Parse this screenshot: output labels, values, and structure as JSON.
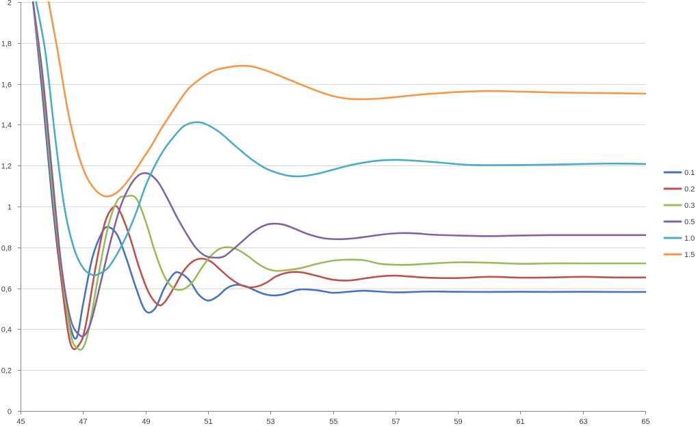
{
  "chart_data": {
    "type": "line",
    "title": "",
    "xlabel": "",
    "ylabel": "",
    "xlim": [
      45,
      65
    ],
    "ylim": [
      0,
      2
    ],
    "x_ticks": [
      45,
      47,
      49,
      51,
      53,
      55,
      57,
      59,
      61,
      63,
      65
    ],
    "x_tick_labels": [
      "45",
      "47",
      "49",
      "51",
      "53",
      "55",
      "57",
      "59",
      "61",
      "63",
      "65"
    ],
    "y_ticks": [
      0,
      0.2,
      0.4,
      0.6,
      0.8,
      1,
      1.2,
      1.4,
      1.6,
      1.8,
      2
    ],
    "y_tick_labels": [
      "0",
      "0,2",
      "0,4",
      "0,6",
      "0,8",
      "1",
      "1,2",
      "1,4",
      "1,6",
      "1,8",
      "2"
    ],
    "grid": true,
    "legend_position": "right",
    "series": [
      {
        "name": "0.1",
        "color": "#4472C4",
        "x": [
          45.4,
          45.7,
          46.0,
          46.3,
          46.6,
          46.8,
          47.0,
          47.3,
          47.6,
          47.8,
          48.1,
          48.4,
          48.7,
          49.0,
          49.3,
          49.6,
          49.9,
          50.1,
          50.4,
          50.7,
          51.0,
          51.3,
          51.6,
          51.9,
          52.2,
          52.5,
          52.8,
          53.1,
          53.4,
          53.7,
          54.0,
          54.5,
          55.0,
          55.5,
          56.0,
          57.0,
          58.0,
          59.0,
          60.0,
          61.0,
          62.0,
          63.0,
          64.0,
          65.0
        ],
        "y": [
          2.0,
          1.55,
          1.05,
          0.65,
          0.41,
          0.36,
          0.52,
          0.75,
          0.87,
          0.9,
          0.86,
          0.74,
          0.6,
          0.49,
          0.5,
          0.6,
          0.67,
          0.675,
          0.64,
          0.57,
          0.54,
          0.56,
          0.6,
          0.617,
          0.61,
          0.59,
          0.572,
          0.565,
          0.57,
          0.585,
          0.595,
          0.59,
          0.578,
          0.583,
          0.588,
          0.58,
          0.584,
          0.583,
          0.582,
          0.583,
          0.582,
          0.583,
          0.582,
          0.582
        ]
      },
      {
        "name": "0.2",
        "color": "#C0504D",
        "x": [
          45.4,
          45.7,
          46.0,
          46.3,
          46.6,
          46.9,
          47.1,
          47.4,
          47.7,
          48.0,
          48.2,
          48.5,
          48.8,
          49.1,
          49.4,
          49.6,
          49.9,
          50.2,
          50.5,
          50.8,
          51.1,
          51.4,
          51.7,
          52.0,
          52.3,
          52.6,
          52.9,
          53.2,
          53.6,
          54.0,
          54.5,
          55.0,
          55.5,
          56.0,
          56.5,
          57.0,
          58.0,
          59.0,
          60.0,
          61.0,
          62.0,
          63.0,
          64.0,
          65.0
        ],
        "y": [
          2.0,
          1.6,
          1.1,
          0.65,
          0.33,
          0.33,
          0.43,
          0.7,
          0.92,
          1.0,
          0.97,
          0.85,
          0.7,
          0.58,
          0.52,
          0.53,
          0.6,
          0.68,
          0.73,
          0.745,
          0.73,
          0.69,
          0.65,
          0.62,
          0.605,
          0.61,
          0.63,
          0.66,
          0.678,
          0.678,
          0.66,
          0.642,
          0.638,
          0.648,
          0.658,
          0.662,
          0.652,
          0.65,
          0.656,
          0.652,
          0.653,
          0.656,
          0.653,
          0.653
        ]
      },
      {
        "name": "0.3",
        "color": "#9BBB59",
        "x": [
          45.4,
          45.7,
          46.0,
          46.3,
          46.6,
          46.8,
          47.0,
          47.2,
          47.5,
          47.8,
          48.1,
          48.4,
          48.7,
          49.0,
          49.3,
          49.6,
          49.9,
          50.2,
          50.5,
          50.8,
          51.1,
          51.4,
          51.7,
          52.0,
          52.3,
          52.6,
          52.9,
          53.2,
          53.6,
          54.0,
          54.5,
          55.0,
          55.5,
          56.0,
          56.5,
          57.0,
          57.5,
          58.0,
          59.0,
          60.0,
          61.0,
          62.0,
          63.0,
          64.0,
          65.0
        ],
        "y": [
          2.0,
          1.62,
          1.12,
          0.7,
          0.38,
          0.31,
          0.31,
          0.41,
          0.67,
          0.9,
          1.03,
          1.05,
          1.04,
          0.93,
          0.78,
          0.66,
          0.6,
          0.595,
          0.63,
          0.7,
          0.76,
          0.795,
          0.8,
          0.785,
          0.755,
          0.72,
          0.695,
          0.685,
          0.69,
          0.7,
          0.72,
          0.735,
          0.74,
          0.737,
          0.72,
          0.715,
          0.715,
          0.72,
          0.727,
          0.725,
          0.72,
          0.722,
          0.722,
          0.722,
          0.722
        ]
      },
      {
        "name": "0.5",
        "color": "#8064A2",
        "x": [
          45.4,
          45.7,
          46.0,
          46.3,
          46.6,
          46.9,
          47.1,
          47.3,
          47.6,
          47.9,
          48.2,
          48.5,
          48.8,
          49.1,
          49.4,
          49.7,
          50.0,
          50.3,
          50.6,
          50.9,
          51.2,
          51.5,
          51.8,
          52.1,
          52.4,
          52.7,
          53.0,
          53.4,
          53.8,
          54.2,
          54.7,
          55.2,
          55.7,
          56.2,
          56.7,
          57.2,
          57.7,
          58.2,
          59.0,
          60.0,
          61.0,
          62.0,
          63.0,
          64.0,
          65.0
        ],
        "y": [
          2.0,
          1.65,
          1.18,
          0.72,
          0.45,
          0.37,
          0.38,
          0.46,
          0.65,
          0.84,
          1.0,
          1.1,
          1.155,
          1.16,
          1.12,
          1.04,
          0.95,
          0.87,
          0.8,
          0.76,
          0.75,
          0.755,
          0.79,
          0.83,
          0.87,
          0.9,
          0.915,
          0.912,
          0.89,
          0.865,
          0.845,
          0.84,
          0.845,
          0.855,
          0.865,
          0.87,
          0.868,
          0.862,
          0.858,
          0.855,
          0.858,
          0.86,
          0.86,
          0.86,
          0.86
        ]
      },
      {
        "name": "1.0",
        "color": "#4BACC6",
        "x": [
          45.5,
          45.8,
          46.1,
          46.4,
          46.7,
          47.0,
          47.3,
          47.5,
          47.8,
          48.1,
          48.4,
          48.7,
          49.0,
          49.3,
          49.6,
          49.9,
          50.2,
          50.5,
          50.8,
          51.1,
          51.4,
          51.7,
          52.0,
          52.4,
          52.8,
          53.2,
          53.6,
          54.0,
          54.5,
          55.0,
          55.5,
          56.0,
          56.5,
          57.0,
          57.5,
          58.0,
          58.5,
          59.0,
          59.5,
          60.0,
          61.0,
          62.0,
          63.0,
          64.0,
          65.0
        ],
        "y": [
          2.0,
          1.75,
          1.35,
          1.0,
          0.8,
          0.7,
          0.665,
          0.67,
          0.7,
          0.77,
          0.86,
          0.97,
          1.1,
          1.2,
          1.28,
          1.34,
          1.39,
          1.41,
          1.41,
          1.39,
          1.36,
          1.32,
          1.28,
          1.23,
          1.19,
          1.165,
          1.15,
          1.148,
          1.16,
          1.18,
          1.2,
          1.215,
          1.225,
          1.228,
          1.225,
          1.22,
          1.214,
          1.207,
          1.203,
          1.202,
          1.203,
          1.205,
          1.208,
          1.21,
          1.208
        ]
      },
      {
        "name": "1.5",
        "color": "#F79646",
        "x": [
          45.9,
          46.2,
          46.5,
          46.8,
          47.1,
          47.4,
          47.7,
          48.0,
          48.3,
          48.6,
          48.9,
          49.2,
          49.5,
          49.8,
          50.1,
          50.4,
          50.8,
          51.2,
          51.6,
          52.0,
          52.4,
          52.8,
          53.2,
          53.6,
          54.0,
          54.5,
          55.0,
          55.5,
          56.0,
          56.5,
          57.0,
          57.5,
          58.0,
          58.5,
          59.0,
          60.0,
          61.0,
          62.0,
          63.0,
          64.0,
          65.0
        ],
        "y": [
          2.0,
          1.75,
          1.48,
          1.28,
          1.15,
          1.08,
          1.05,
          1.06,
          1.1,
          1.16,
          1.23,
          1.3,
          1.38,
          1.45,
          1.52,
          1.58,
          1.63,
          1.665,
          1.68,
          1.688,
          1.685,
          1.668,
          1.645,
          1.62,
          1.595,
          1.565,
          1.54,
          1.527,
          1.525,
          1.528,
          1.535,
          1.543,
          1.55,
          1.555,
          1.56,
          1.565,
          1.562,
          1.558,
          1.556,
          1.554,
          1.552
        ]
      }
    ]
  }
}
